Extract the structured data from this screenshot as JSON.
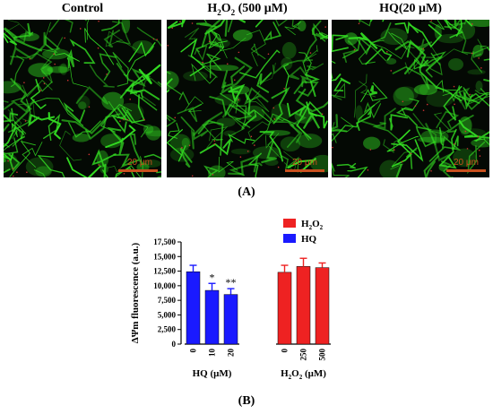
{
  "panel_a": {
    "titles": [
      "Control",
      "H2O2 (500 μM)",
      "HQ(20 μM)"
    ],
    "title_parts": {
      "h2o2_main": "H",
      "h2o2_sub": "2",
      "h2o2_mid": "O",
      "h2o2_sub2": "2",
      "h2o2_rest": " (500 μM)"
    },
    "scale_label": "20 μm",
    "label": "(A)"
  },
  "panel_b_label": "(B)",
  "colors": {
    "H2O2": "#ee2222",
    "HQ": "#1a1aff",
    "fluor": "#33dd22",
    "scalebar": "#c8501e"
  },
  "chart_data": {
    "type": "bar",
    "ylabel": "ΔΨm fluorescence (a.u.)",
    "ylim": [
      0,
      17500
    ],
    "yticks": [
      "0",
      "2,500",
      "5,000",
      "7,500",
      "10,000",
      "12,500",
      "15,000",
      "17,500"
    ],
    "ytick_values": [
      0,
      2500,
      5000,
      7500,
      10000,
      12500,
      15000,
      17500
    ],
    "legend": [
      "H2O2",
      "HQ"
    ],
    "legend_placement": "top-right",
    "groups": [
      {
        "name": "HQ",
        "xlabel": "HQ (μM)",
        "categories": [
          "0",
          "10",
          "20"
        ],
        "values": [
          12400,
          9200,
          8500
        ],
        "errors": [
          1100,
          1200,
          1000
        ],
        "significance": [
          "",
          "*",
          "**"
        ]
      },
      {
        "name": "H2O2",
        "xlabel": "H2O2 (μM)",
        "categories": [
          "0",
          "250",
          "500"
        ],
        "values": [
          12300,
          13300,
          13100
        ],
        "errors": [
          1200,
          1400,
          800
        ],
        "significance": [
          "",
          "",
          ""
        ]
      }
    ]
  }
}
